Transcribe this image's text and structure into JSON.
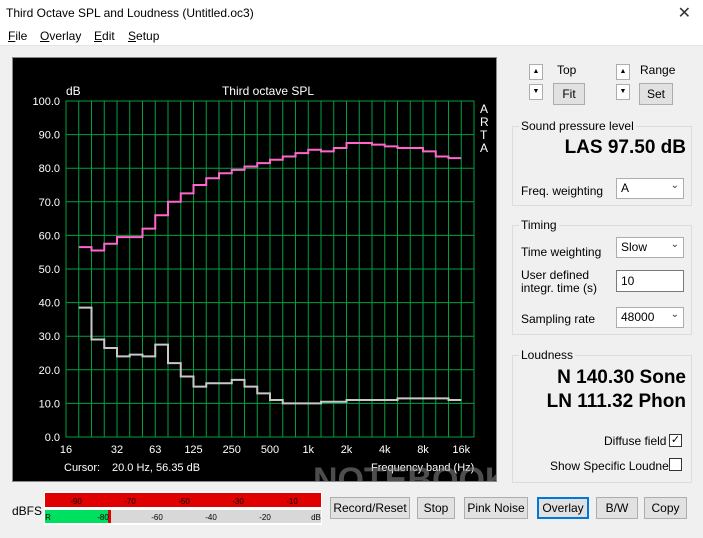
{
  "window": {
    "title": "Third Octave SPL and Loudness (Untitled.oc3)",
    "close_glyph": "✕"
  },
  "menu": [
    {
      "first": "F",
      "rest": "ile"
    },
    {
      "first": "O",
      "rest": "verlay"
    },
    {
      "first": "E",
      "rest": "dit"
    },
    {
      "first": "S",
      "rest": "etup"
    }
  ],
  "graph": {
    "unit_label": "dB",
    "arta_label": [
      "A",
      "R",
      "T",
      "A"
    ],
    "cursor_label": "Cursor:",
    "cursor_value": "20.0 Hz, 56.35 dB",
    "watermark": "NOTEBOOKCHECK"
  },
  "chart_data": {
    "type": "line",
    "title": "Third octave SPL",
    "ylabel": "dB",
    "xlabel": "Frequency band (Hz)",
    "ylim": [
      0,
      100
    ],
    "yticks": [
      "100.0",
      "90.0",
      "80.0",
      "70.0",
      "60.0",
      "50.0",
      "40.0",
      "30.0",
      "20.0",
      "10.0",
      "0.0"
    ],
    "xtick_labels": [
      "16",
      "32",
      "63",
      "125",
      "250",
      "500",
      "1k",
      "2k",
      "4k",
      "8k",
      "16k"
    ],
    "bands": [
      "16",
      "20",
      "25",
      "31.5",
      "40",
      "50",
      "63",
      "80",
      "100",
      "125",
      "160",
      "200",
      "250",
      "315",
      "400",
      "500",
      "630",
      "800",
      "1k",
      "1.25k",
      "1.6k",
      "2k",
      "2.5k",
      "3.15k",
      "4k",
      "5k",
      "6.3k",
      "8k",
      "10k",
      "12.5k",
      "16k",
      "20k"
    ],
    "grid": true,
    "background": "#000000",
    "grid_color": "#00a040",
    "series": [
      {
        "color": "#ff66cc",
        "values": [
          null,
          56.5,
          55.5,
          57.5,
          59.5,
          59.5,
          62,
          66,
          70,
          72.5,
          75,
          77,
          78.5,
          79.5,
          80.5,
          81.5,
          82.5,
          83.5,
          84.5,
          85.5,
          85,
          86,
          87.5,
          87.5,
          87,
          86.5,
          86,
          86,
          85,
          83.5,
          83,
          null
        ]
      },
      {
        "color": "#c8c8c8",
        "values": [
          null,
          38.5,
          29,
          26.5,
          24,
          24.5,
          24,
          27.5,
          22,
          18,
          15,
          16,
          16,
          17,
          15,
          13,
          11,
          10,
          10,
          10,
          10.5,
          10.5,
          11,
          11,
          11,
          11,
          11.5,
          11.5,
          11.5,
          11.5,
          11,
          null
        ]
      }
    ]
  },
  "meter": {
    "label": "dBFS",
    "top_ticks": [
      "-90",
      "-70",
      "-50",
      "-30",
      "-10"
    ],
    "bottom_ticks": [
      "R",
      "-80",
      "-60",
      "-40",
      "-20",
      "dB"
    ],
    "red": "#e00000",
    "green": "#00e060"
  },
  "buttons": {
    "record_reset": "Record/Reset",
    "stop": "Stop",
    "pink_noise": "Pink Noise",
    "overlay": "Overlay",
    "bw": "B/W",
    "copy": "Copy",
    "fit": "Fit",
    "set": "Set"
  },
  "top_controls": {
    "top_label": "Top",
    "range_label": "Range",
    "up": "▲",
    "down": "▼"
  },
  "spl": {
    "group_title": "Sound pressure level",
    "reading": "LAS 97.50 dB",
    "freq_weighting_label": "Freq. weighting",
    "freq_weighting_value": "A"
  },
  "timing": {
    "group_title": "Timing",
    "time_weighting_label": "Time weighting",
    "time_weighting_value": "Slow",
    "integr_label_1": "User defined",
    "integr_label_2": "integr. time (s)",
    "integr_value": "10",
    "sampling_label": "Sampling rate",
    "sampling_value": "48000"
  },
  "loudness": {
    "group_title": "Loudness",
    "sone": "N 140.30 Sone",
    "phon": "LN 111.32 Phon",
    "diffuse_label": "Diffuse field",
    "diffuse_checked": "✓",
    "specific_label": "Show Specific Loudness"
  }
}
